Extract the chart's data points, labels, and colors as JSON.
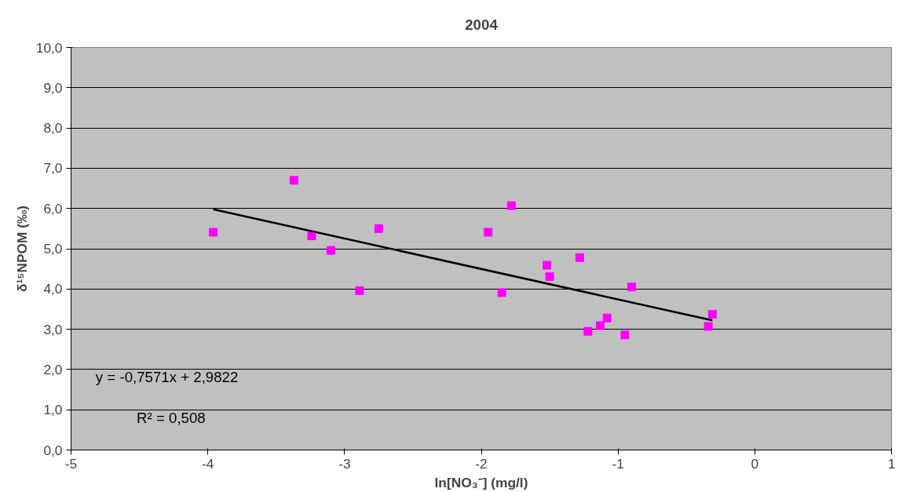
{
  "chart_data": {
    "type": "scatter",
    "title": "2004",
    "xlabel": "ln[NO₃⁻] (mg/l)",
    "ylabel": "δ¹⁵NPOM (‰)",
    "xlim": [
      -5,
      1
    ],
    "xticks": [
      -5,
      -4,
      -3,
      -2,
      -1,
      0,
      1
    ],
    "ylim": [
      0,
      10
    ],
    "yticks": [
      {
        "value": 0,
        "label": "0,0"
      },
      {
        "value": 1,
        "label": "1,0"
      },
      {
        "value": 2,
        "label": "2,0"
      },
      {
        "value": 3,
        "label": "3,0"
      },
      {
        "value": 4,
        "label": "4,0"
      },
      {
        "value": 5,
        "label": "5,0"
      },
      {
        "value": 6,
        "label": "6,0"
      },
      {
        "value": 7,
        "label": "7,0"
      },
      {
        "value": 8,
        "label": "8,0"
      },
      {
        "value": 9,
        "label": "9,0"
      },
      {
        "value": 10,
        "label": "10,0"
      }
    ],
    "grid": "y",
    "marker": "square",
    "series": [
      {
        "color": "#ff00ff",
        "x": [
          -3.96,
          -3.37,
          -3.24,
          -3.1,
          -2.89,
          -2.75,
          -1.95,
          -1.85,
          -1.78,
          -1.52,
          -1.5,
          -1.28,
          -1.22,
          -1.13,
          -1.08,
          -0.95,
          -0.9,
          -0.34,
          -0.31
        ],
        "values": [
          5.41,
          6.7,
          5.32,
          4.96,
          3.96,
          5.5,
          5.41,
          3.91,
          6.07,
          4.59,
          4.31,
          4.78,
          2.95,
          3.09,
          3.28,
          2.86,
          4.05,
          3.07,
          3.37
        ]
      },
      {
        "type": "line",
        "marker": "none",
        "color": "#000000",
        "x": [
          -3.96,
          -0.31
        ],
        "values": [
          5.98,
          3.22
        ]
      }
    ],
    "annotations": [
      "y = -0,7571x + 2,9822",
      "R² = 0,508"
    ]
  }
}
